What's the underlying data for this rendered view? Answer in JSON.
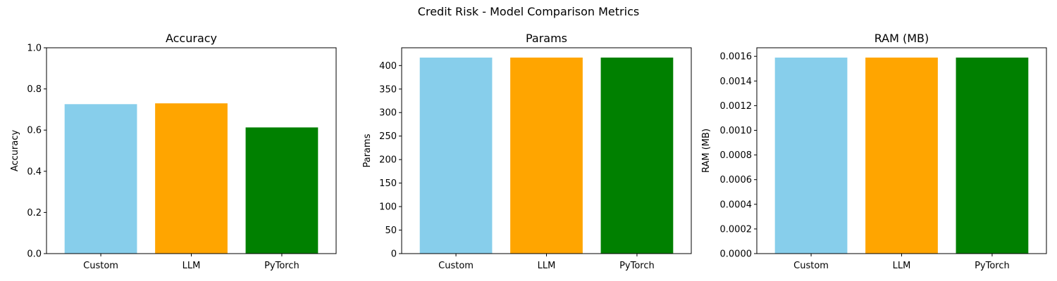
{
  "figure": {
    "suptitle": "Credit Risk - Model Comparison Metrics"
  },
  "chart_data": [
    {
      "type": "bar",
      "title": "Accuracy",
      "xlabel": "",
      "ylabel": "Accuracy",
      "categories": [
        "Custom",
        "LLM",
        "PyTorch"
      ],
      "values": [
        0.726,
        0.73,
        0.613
      ],
      "colors": [
        "#87ceeb",
        "#ffa500",
        "#008000"
      ],
      "ylim": [
        0,
        1.0
      ],
      "yticks": [
        0.0,
        0.2,
        0.4,
        0.6,
        0.8,
        1.0
      ],
      "ytick_labels": [
        "0.0",
        "0.2",
        "0.4",
        "0.6",
        "0.8",
        "1.0"
      ],
      "grid": false,
      "legend": "none"
    },
    {
      "type": "bar",
      "title": "Params",
      "xlabel": "",
      "ylabel": "Params",
      "categories": [
        "Custom",
        "LLM",
        "PyTorch"
      ],
      "values": [
        417,
        417,
        417
      ],
      "colors": [
        "#87ceeb",
        "#ffa500",
        "#008000"
      ],
      "ylim": [
        0,
        437.85
      ],
      "yticks": [
        0,
        50,
        100,
        150,
        200,
        250,
        300,
        350,
        400
      ],
      "ytick_labels": [
        "0",
        "50",
        "100",
        "150",
        "200",
        "250",
        "300",
        "350",
        "400"
      ],
      "grid": false,
      "legend": "none"
    },
    {
      "type": "bar",
      "title": "RAM (MB)",
      "xlabel": "",
      "ylabel": "RAM (MB)",
      "categories": [
        "Custom",
        "LLM",
        "PyTorch"
      ],
      "values": [
        0.00159,
        0.00159,
        0.00159
      ],
      "colors": [
        "#87ceeb",
        "#ffa500",
        "#008000"
      ],
      "ylim": [
        0,
        0.0016695
      ],
      "yticks": [
        0.0,
        0.0002,
        0.0004,
        0.0006,
        0.0008,
        0.001,
        0.0012,
        0.0014,
        0.0016
      ],
      "ytick_labels": [
        "0.0000",
        "0.0002",
        "0.0004",
        "0.0006",
        "0.0008",
        "0.0010",
        "0.0012",
        "0.0014",
        "0.0016"
      ],
      "grid": false,
      "legend": "none"
    }
  ]
}
